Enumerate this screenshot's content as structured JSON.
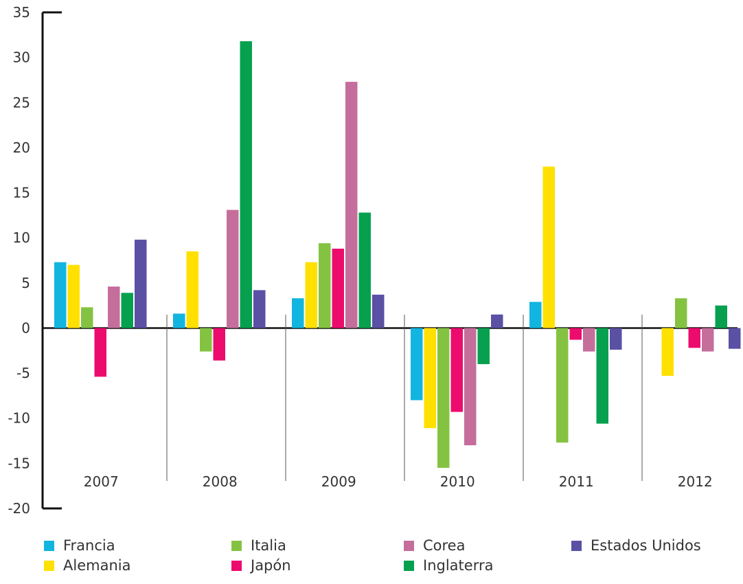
{
  "chart_data": {
    "type": "bar",
    "categories": [
      "2007",
      "2008",
      "2009",
      "2010",
      "2011",
      "2012"
    ],
    "ylim": [
      -20,
      35
    ],
    "yticks": [
      "35",
      "30",
      "25",
      "20",
      "15",
      "10",
      "5",
      "0",
      "-5",
      "-10",
      "-15",
      "-20"
    ],
    "series": [
      {
        "name": "Francia",
        "color": "#12b5e0",
        "values": [
          7.3,
          1.6,
          3.3,
          -8.0,
          2.9,
          0
        ]
      },
      {
        "name": "Alemania",
        "color": "#ffe000",
        "values": [
          7.0,
          8.5,
          7.3,
          -11.1,
          17.9,
          -5.3
        ]
      },
      {
        "name": "Italia",
        "color": "#84c341",
        "values": [
          2.3,
          -2.6,
          9.4,
          -15.5,
          -12.7,
          3.3
        ]
      },
      {
        "name": "Japón",
        "color": "#ec0c6e",
        "values": [
          -5.4,
          -3.6,
          8.8,
          -9.3,
          -1.3,
          -2.2
        ]
      },
      {
        "name": "Corea",
        "color": "#c56e9c",
        "values": [
          4.6,
          13.1,
          27.3,
          -13.0,
          -2.6,
          -2.6
        ]
      },
      {
        "name": "Inglaterra",
        "color": "#06a04f",
        "values": [
          3.9,
          31.8,
          12.8,
          -4.0,
          -10.6,
          2.5
        ]
      },
      {
        "name": "Estados Unidos",
        "color": "#5a50a4",
        "values": [
          9.8,
          4.2,
          3.7,
          1.5,
          -2.4,
          -2.3
        ]
      }
    ],
    "legend_placement": "bottom",
    "grid": false
  }
}
